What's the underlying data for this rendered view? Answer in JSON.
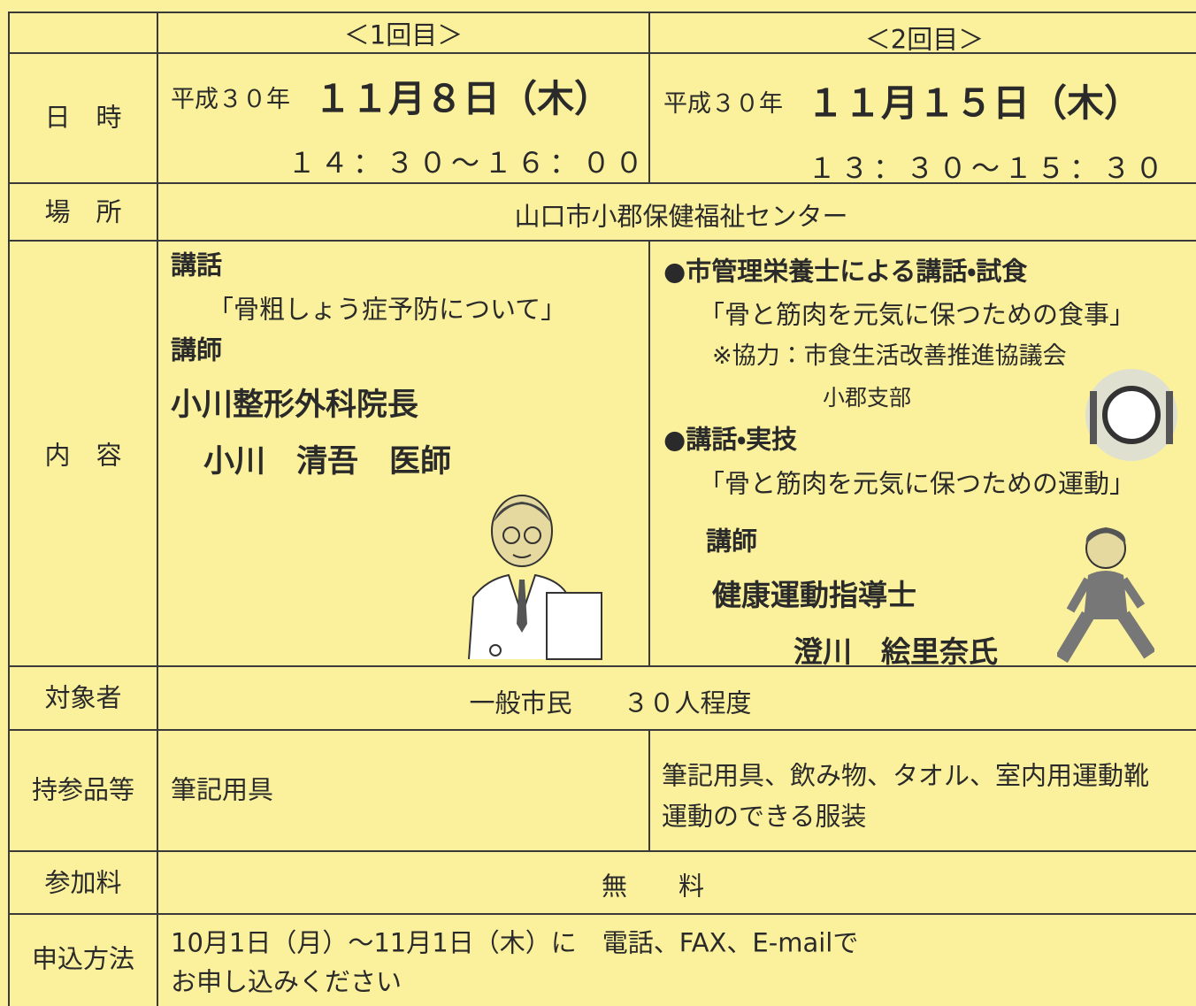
{
  "header": {
    "session1": "＜1回目＞",
    "session2": "＜2回目＞"
  },
  "datetime": {
    "label": "日　時",
    "session1": {
      "era": "平成３０年",
      "date": "１１月８日（木）",
      "time": "１４：３０〜１６：００"
    },
    "session2": {
      "era": "平成３０年",
      "date": "１１月１５日（木）",
      "time": "１３：３０〜１５：３０"
    }
  },
  "venue": {
    "label": "場　所",
    "text": "山口市小郡保健福祉センター"
  },
  "content": {
    "label": "内　容",
    "session1": {
      "lecture_heading": "講話",
      "lecture_title": "「骨粗しょう症予防について」",
      "lecturer_heading": "講師",
      "lecturer_affiliation": "小川整形外科院長",
      "lecturer_name": "小川　清吾　医師"
    },
    "session2": {
      "item1_heading": "●市管理栄養士による講話・試食",
      "item1_title": "「骨と筋肉を元気に保つための食事」",
      "item1_note": "※協力：市食生活改善推進協議会",
      "item1_note_2": "小郡支部",
      "item2_heading": "●講話・実技",
      "item2_title": "「骨と筋肉を元気に保つための運動」",
      "lecturer_heading": "講師",
      "lecturer_affiliation": "健康運動指導士",
      "lecturer_name": "澄川　絵里奈氏"
    }
  },
  "audience": {
    "label": "対象者",
    "text": "一般市民　　３０人程度"
  },
  "belongings": {
    "label": "持参品等",
    "session1": "筆記用具",
    "session2_line1": "筆記用具、飲み物、タオル、室内用運動靴",
    "session2_line2": "運動のできる服装"
  },
  "fee": {
    "label": "参加料",
    "text": "無　　料"
  },
  "application": {
    "label": "申込方法",
    "line1": "10月1日（月）～11月1日（木）に　電話、FAX、E-mailで",
    "line2": "お申し込みください"
  }
}
